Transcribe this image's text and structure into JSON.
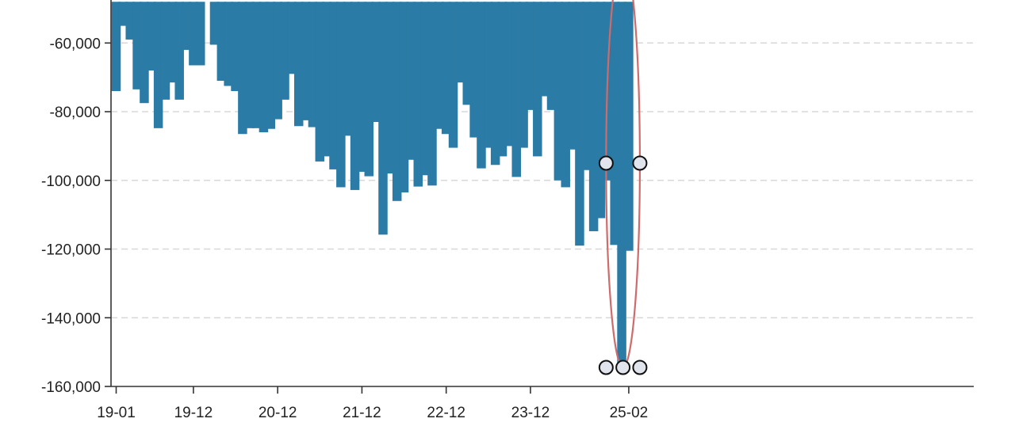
{
  "chart_data": {
    "type": "bar",
    "title": "",
    "xlabel": "",
    "ylabel": "",
    "ylim": [
      -160000,
      -48000
    ],
    "y_ticks": [
      -60000,
      -80000,
      -100000,
      -120000,
      -140000,
      -160000
    ],
    "y_tick_labels": [
      "-60,000",
      "-80,000",
      "-100,000",
      "-120,000",
      "-140,000",
      "-160,000"
    ],
    "x_tick_labels": [
      "19-01",
      "19-12",
      "20-12",
      "21-12",
      "22-12",
      "23-12",
      "25-02"
    ],
    "x_tick_categories": [
      "19-01",
      "19-12",
      "20-12",
      "21-12",
      "22-12",
      "23-12",
      "25-02"
    ],
    "grid": true,
    "categories": [
      "19-01",
      "19-02",
      "19-03",
      "19-04",
      "19-05",
      "19-06",
      "19-07",
      "19-08",
      "19-09",
      "19-10",
      "19-11",
      "19-12",
      "20-01",
      "20-02",
      "20-03",
      "20-04",
      "20-05",
      "20-06",
      "20-07",
      "20-08",
      "20-09",
      "20-10",
      "20-11",
      "20-12",
      "21-01",
      "21-02",
      "21-03",
      "21-04",
      "21-05",
      "21-06",
      "21-07",
      "21-08",
      "21-09",
      "21-10",
      "21-11",
      "21-12",
      "22-01",
      "22-02",
      "22-03",
      "22-04",
      "22-05",
      "22-06",
      "22-07",
      "22-08",
      "22-09",
      "22-10",
      "22-11",
      "22-12",
      "23-01",
      "23-02",
      "23-03",
      "23-04",
      "23-05",
      "23-06",
      "23-07",
      "23-08",
      "23-09",
      "23-10",
      "23-11",
      "23-12",
      "24-01",
      "24-02",
      "24-03",
      "24-04",
      "24-05",
      "24-06",
      "24-07",
      "24-08",
      "24-09",
      "24-10",
      "24-11",
      "24-12",
      "25-01",
      "25-02"
    ],
    "values": [
      -74000,
      -55000,
      -59000,
      -73500,
      -77500,
      -68000,
      -84800,
      -76500,
      -71500,
      -76500,
      -62000,
      -66500,
      -66500,
      -48000,
      -60500,
      -71000,
      -72500,
      -74000,
      -86500,
      -84800,
      -84800,
      -86000,
      -85000,
      -82200,
      -76500,
      -69000,
      -84200,
      -82500,
      -84500,
      -94500,
      -93000,
      -96800,
      -102000,
      -87000,
      -102800,
      -97500,
      -98800,
      -83000,
      -115800,
      -98000,
      -106000,
      -103500,
      -94000,
      -101800,
      -98500,
      -101500,
      -85000,
      -86500,
      -90500,
      -71500,
      -78000,
      -87500,
      -96500,
      -90500,
      -95500,
      -93000,
      -90000,
      -99000,
      -90500,
      -79500,
      -93000,
      -75500,
      -79500,
      -100000,
      -102000,
      -91000,
      -119000,
      -97000,
      -114800,
      -111000,
      -100000,
      -118800,
      -153000,
      -120500
    ],
    "bar_color": "#2a7ba5",
    "annotations": {
      "selection_ellipse_color": "#cf6b6b",
      "selection_categories": [
        "24-11",
        "25-02"
      ],
      "handle_fill": "#e1e4ec"
    }
  }
}
